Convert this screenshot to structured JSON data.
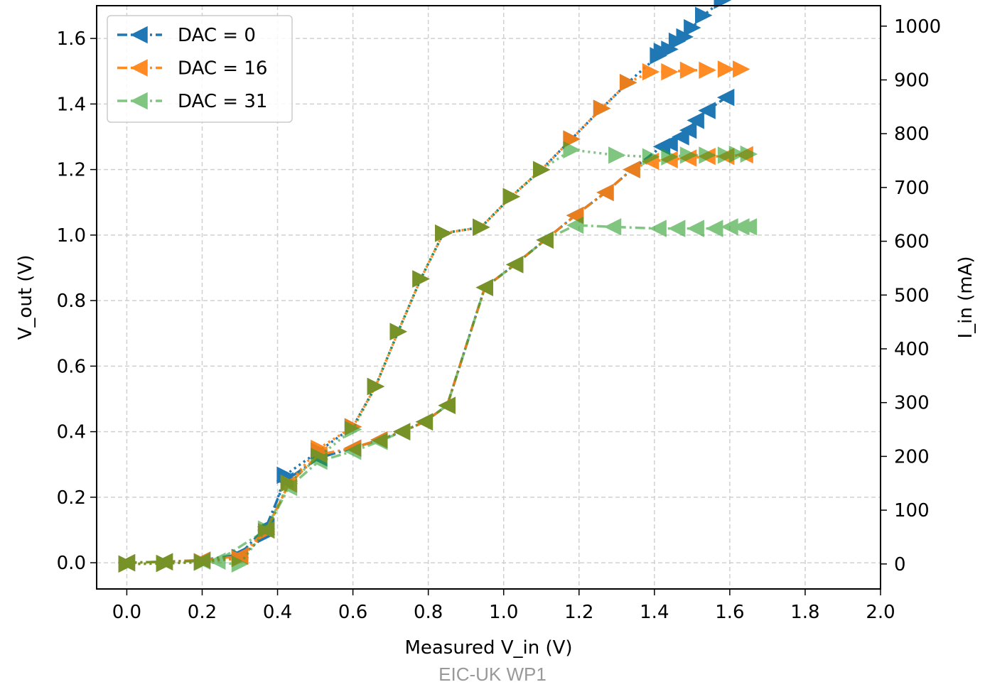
{
  "chart_data": {
    "type": "line",
    "xlabel": "Measured V_in (V)",
    "ylabel": "V_out (V)",
    "y2label": "I_in (mA)",
    "xlim": [
      -0.08,
      2.0
    ],
    "ylim": [
      -0.08,
      1.7
    ],
    "y2lim": [
      -46.5,
      1038
    ],
    "x_ticks": [
      "0.0",
      "0.2",
      "0.4",
      "0.6",
      "0.8",
      "1.0",
      "1.2",
      "1.4",
      "1.6",
      "1.8",
      "2.0"
    ],
    "y_ticks": [
      "0.0",
      "0.2",
      "0.4",
      "0.6",
      "0.8",
      "1.0",
      "1.2",
      "1.4",
      "1.6"
    ],
    "y2_ticks": [
      "0",
      "100",
      "200",
      "300",
      "400",
      "500",
      "600",
      "700",
      "800",
      "900",
      "1000"
    ],
    "grid": true,
    "legend_position": "upper-left",
    "footer": "EIC-UK WP1",
    "series": [
      {
        "name": "DAC = 0",
        "color": "#1f77b4",
        "vout": [
          [
            0.0,
            0.0
          ],
          [
            0.1,
            0.003
          ],
          [
            0.2,
            0.008
          ],
          [
            0.3,
            0.025
          ],
          [
            0.37,
            0.11
          ],
          [
            0.42,
            0.25
          ],
          [
            0.51,
            0.32
          ],
          [
            0.6,
            0.35
          ],
          [
            0.67,
            0.375
          ],
          [
            0.73,
            0.4
          ],
          [
            0.79,
            0.43
          ],
          [
            0.85,
            0.48
          ],
          [
            0.95,
            0.84
          ],
          [
            1.03,
            0.91
          ],
          [
            1.11,
            0.985
          ],
          [
            1.19,
            1.06
          ],
          [
            1.27,
            1.13
          ],
          [
            1.34,
            1.2
          ],
          [
            1.42,
            1.27
          ],
          [
            1.44,
            1.28
          ],
          [
            1.47,
            1.3
          ],
          [
            1.49,
            1.32
          ],
          [
            1.51,
            1.35
          ],
          [
            1.54,
            1.38
          ],
          [
            1.59,
            1.42
          ]
        ],
        "iin": [
          [
            0.0,
            0
          ],
          [
            0.1,
            1
          ],
          [
            0.2,
            4
          ],
          [
            0.3,
            12
          ],
          [
            0.37,
            55
          ],
          [
            0.42,
            165
          ],
          [
            0.51,
            210
          ],
          [
            0.6,
            255
          ],
          [
            0.66,
            330
          ],
          [
            0.72,
            432
          ],
          [
            0.78,
            530
          ],
          [
            0.84,
            615
          ],
          [
            0.94,
            626
          ],
          [
            1.02,
            683
          ],
          [
            1.1,
            733
          ],
          [
            1.18,
            790
          ],
          [
            1.26,
            847
          ],
          [
            1.33,
            895
          ],
          [
            1.41,
            945
          ],
          [
            1.42,
            953
          ],
          [
            1.44,
            957
          ],
          [
            1.46,
            972
          ],
          [
            1.48,
            980
          ],
          [
            1.5,
            997
          ],
          [
            1.53,
            1020
          ],
          [
            1.58,
            1048
          ]
        ]
      },
      {
        "name": "DAC = 16",
        "color": "#ff7f0e",
        "vout": [
          [
            0.0,
            0.0
          ],
          [
            0.1,
            0.003
          ],
          [
            0.2,
            0.008
          ],
          [
            0.3,
            0.02
          ],
          [
            0.37,
            0.1
          ],
          [
            0.43,
            0.24
          ],
          [
            0.51,
            0.33
          ],
          [
            0.6,
            0.35
          ],
          [
            0.67,
            0.375
          ],
          [
            0.73,
            0.4
          ],
          [
            0.79,
            0.43
          ],
          [
            0.85,
            0.48
          ],
          [
            0.95,
            0.84
          ],
          [
            1.03,
            0.91
          ],
          [
            1.11,
            0.985
          ],
          [
            1.19,
            1.06
          ],
          [
            1.27,
            1.13
          ],
          [
            1.34,
            1.2
          ],
          [
            1.39,
            1.225
          ],
          [
            1.44,
            1.23
          ],
          [
            1.49,
            1.235
          ],
          [
            1.54,
            1.24
          ],
          [
            1.59,
            1.24
          ],
          [
            1.64,
            1.245
          ]
        ],
        "iin": [
          [
            0.0,
            0
          ],
          [
            0.1,
            1
          ],
          [
            0.2,
            4
          ],
          [
            0.3,
            10
          ],
          [
            0.37,
            60
          ],
          [
            0.43,
            150
          ],
          [
            0.51,
            215
          ],
          [
            0.6,
            255
          ],
          [
            0.66,
            330
          ],
          [
            0.72,
            432
          ],
          [
            0.78,
            530
          ],
          [
            0.84,
            615
          ],
          [
            0.94,
            626
          ],
          [
            1.02,
            683
          ],
          [
            1.1,
            733
          ],
          [
            1.18,
            790
          ],
          [
            1.26,
            847
          ],
          [
            1.33,
            895
          ],
          [
            1.39,
            915
          ],
          [
            1.44,
            915
          ],
          [
            1.49,
            918
          ],
          [
            1.54,
            918
          ],
          [
            1.59,
            920
          ],
          [
            1.63,
            920
          ]
        ]
      },
      {
        "name": "DAC = 31",
        "color": "#2ca02c",
        "vout": [
          [
            0.0,
            0.0
          ],
          [
            0.1,
            0.003
          ],
          [
            0.2,
            0.005
          ],
          [
            0.24,
            0.005
          ],
          [
            0.37,
            0.1
          ],
          [
            0.43,
            0.23
          ],
          [
            0.51,
            0.31
          ],
          [
            0.6,
            0.34
          ],
          [
            0.67,
            0.37
          ],
          [
            0.73,
            0.4
          ],
          [
            0.79,
            0.43
          ],
          [
            0.85,
            0.48
          ],
          [
            0.95,
            0.84
          ],
          [
            1.03,
            0.91
          ],
          [
            1.11,
            0.985
          ],
          [
            1.19,
            1.03
          ],
          [
            1.29,
            1.025
          ],
          [
            1.41,
            1.02
          ],
          [
            1.46,
            1.02
          ],
          [
            1.51,
            1.02
          ],
          [
            1.56,
            1.02
          ],
          [
            1.6,
            1.025
          ],
          [
            1.63,
            1.025
          ],
          [
            1.65,
            1.025
          ]
        ],
        "iin": [
          [
            0.0,
            0
          ],
          [
            0.1,
            1
          ],
          [
            0.2,
            3
          ],
          [
            0.3,
            0
          ],
          [
            0.37,
            65
          ],
          [
            0.43,
            150
          ],
          [
            0.51,
            200
          ],
          [
            0.6,
            250
          ],
          [
            0.66,
            330
          ],
          [
            0.72,
            432
          ],
          [
            0.78,
            530
          ],
          [
            0.84,
            615
          ],
          [
            0.94,
            626
          ],
          [
            1.02,
            683
          ],
          [
            1.1,
            733
          ],
          [
            1.18,
            770
          ],
          [
            1.3,
            760
          ],
          [
            1.39,
            757
          ],
          [
            1.44,
            757
          ],
          [
            1.49,
            760
          ],
          [
            1.54,
            760
          ],
          [
            1.59,
            760
          ],
          [
            1.62,
            762
          ],
          [
            1.65,
            762
          ]
        ]
      }
    ]
  }
}
